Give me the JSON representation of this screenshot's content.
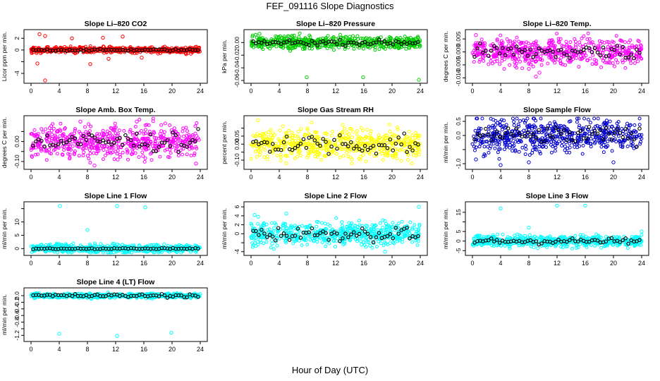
{
  "title": "FEF_091116  Slope Diagnostics",
  "xlabel": "Hour of Day (UTC)",
  "chart_data": [
    {
      "type": "scatter",
      "title": "Slope Li–820 CO2",
      "ylabel": "Licor ppm per min.",
      "color": "#ff0000",
      "xlim": [
        0,
        24
      ],
      "ylim": [
        -5.2,
        3.0
      ],
      "xticks": [
        0,
        4,
        8,
        12,
        16,
        20,
        24
      ],
      "yticks": [
        -4,
        -2,
        0,
        2
      ],
      "ytick_labels": [
        "-4",
        "",
        "0",
        "2"
      ],
      "spread": 0.25,
      "mean_spread": 0.08,
      "outliers": [
        [
          1.2,
          2.7
        ],
        [
          2.0,
          2.4
        ],
        [
          5.8,
          2.0
        ],
        [
          10.2,
          2.1
        ],
        [
          13.0,
          2.3
        ],
        [
          2.0,
          -5.2
        ],
        [
          0.9,
          -2.3
        ],
        [
          8.4,
          -2.4
        ],
        [
          11.0,
          -1.5
        ],
        [
          15.7,
          -1.3
        ],
        [
          22.0,
          -0.7
        ]
      ]
    },
    {
      "type": "scatter",
      "title": "Slope Li–820 Pressure",
      "ylabel": "kPa per min.",
      "color": "#00cc00",
      "xlim": [
        0,
        24
      ],
      "ylim": [
        -0.06,
        0.016
      ],
      "xticks": [
        0,
        4,
        8,
        12,
        16,
        20,
        24
      ],
      "yticks": [
        -0.06,
        -0.04,
        -0.02,
        0.0
      ],
      "ytick_labels": [
        "-0.06",
        "-0.04",
        "-0.02",
        "0.00"
      ],
      "spread": 0.005,
      "mean_spread": 0.002,
      "outliers": [
        [
          7.9,
          -0.055
        ],
        [
          15.9,
          -0.055
        ],
        [
          23.8,
          -0.059
        ],
        [
          1.2,
          0.014
        ],
        [
          3.5,
          0.01
        ],
        [
          14.0,
          0.009
        ]
      ]
    },
    {
      "type": "scatter",
      "title": "Slope Li–820 Temp.",
      "ylabel": "degrees C per min.",
      "color": "#ff00ff",
      "xlim": [
        0,
        24
      ],
      "ylim": [
        -0.011,
        0.0075
      ],
      "xticks": [
        0,
        4,
        8,
        12,
        16,
        20,
        24
      ],
      "yticks": [
        -0.01,
        -0.005,
        0.0,
        0.005
      ],
      "ytick_labels": [
        "-0.010",
        "-0.005",
        "0.000",
        "0.005"
      ],
      "spread": 0.0025,
      "mean_spread": 0.0015,
      "outliers": [
        [
          8.0,
          -0.0065
        ],
        [
          9.0,
          -0.0095
        ],
        [
          9.5,
          -0.008
        ],
        [
          0.5,
          0.0065
        ],
        [
          12.5,
          0.005
        ]
      ]
    },
    {
      "type": "scatter",
      "title": "Slope Amb. Box Temp.",
      "ylabel": "degrees C per min.",
      "color": "#ff00ff",
      "xlim": [
        0,
        24
      ],
      "ylim": [
        -0.125,
        0.115
      ],
      "xticks": [
        0,
        4,
        8,
        12,
        16,
        20,
        24
      ],
      "yticks": [
        -0.1,
        -0.05,
        0.0,
        0.05
      ],
      "ytick_labels": [
        "-0.10",
        "",
        "0.00",
        ""
      ],
      "spread": 0.04,
      "mean_spread": 0.025,
      "outliers": [
        [
          9.0,
          -0.12
        ],
        [
          23.4,
          -0.11
        ],
        [
          12.3,
          -0.09
        ],
        [
          7.0,
          0.1
        ],
        [
          15.0,
          0.1
        ]
      ]
    },
    {
      "type": "scatter",
      "title": "Slope Gas Stream RH",
      "ylabel": "percent per min.",
      "color": "#ffff00",
      "xlim": [
        0,
        24
      ],
      "ylim": [
        -0.14,
        0.16
      ],
      "xticks": [
        0,
        4,
        8,
        12,
        16,
        20,
        24
      ],
      "yticks": [
        -0.1,
        -0.05,
        0.0,
        0.05,
        0.1
      ],
      "ytick_labels": [
        "-0.10",
        "",
        "0.00",
        "0.05",
        ""
      ],
      "spread": 0.045,
      "mean_spread": 0.035,
      "outliers": [
        [
          1.0,
          0.15
        ],
        [
          5.0,
          -0.12
        ],
        [
          22.8,
          -0.12
        ],
        [
          13.0,
          0.12
        ]
      ]
    },
    {
      "type": "scatter",
      "title": "Slope Sample Flow",
      "ylabel": "ml/min per min.",
      "color": "#0000cc",
      "xlim": [
        0,
        24
      ],
      "ylim": [
        -1.1,
        0.6
      ],
      "xticks": [
        0,
        4,
        8,
        12,
        16,
        20,
        24
      ],
      "yticks": [
        -1.0,
        -0.5,
        0.0,
        0.5
      ],
      "ytick_labels": [
        "-1.0",
        "",
        "0.0",
        "0.5"
      ],
      "spread": 0.3,
      "mean_spread": 0.15,
      "outliers": [
        [
          4.0,
          -1.05
        ],
        [
          20.0,
          -0.95
        ],
        [
          8.0,
          -0.95
        ],
        [
          0.5,
          -0.85
        ]
      ]
    },
    {
      "type": "scatter",
      "title": "Slope Line 1 Flow",
      "ylabel": "ml/min per min.",
      "color": "#00ffff",
      "xlim": [
        0,
        24
      ],
      "ylim": [
        -1.5,
        16.5
      ],
      "xticks": [
        0,
        4,
        8,
        12,
        16,
        20,
        24
      ],
      "yticks": [
        0,
        5,
        10,
        15
      ],
      "ytick_labels": [
        "0",
        "5",
        "10",
        ""
      ],
      "spread": 0.8,
      "mean_spread": 0.1,
      "outliers": [
        [
          4.1,
          16.0
        ],
        [
          12.2,
          16.0
        ],
        [
          16.2,
          15.5
        ],
        [
          8.0,
          7.0
        ]
      ]
    },
    {
      "type": "scatter",
      "title": "Slope Line 2 Flow",
      "ylabel": "ml/min per min.",
      "color": "#00ffff",
      "xlim": [
        0,
        24
      ],
      "ylim": [
        -4.2,
        6.5
      ],
      "xticks": [
        0,
        4,
        8,
        12,
        16,
        20,
        24
      ],
      "yticks": [
        -4,
        -2,
        0,
        2,
        4,
        6
      ],
      "ytick_labels": [
        "-4",
        "",
        "0",
        "2",
        "4",
        "6"
      ],
      "spread": 1.3,
      "mean_spread": 0.8,
      "outliers": [
        [
          0.5,
          4.2
        ],
        [
          1.0,
          3.8
        ],
        [
          5.0,
          4.5
        ],
        [
          23.8,
          6.0
        ],
        [
          19.0,
          -4.0
        ],
        [
          3.0,
          -2.2
        ]
      ]
    },
    {
      "type": "scatter",
      "title": "Slope Line 3 Flow",
      "ylabel": "ml/min per min.",
      "color": "#00ffff",
      "xlim": [
        0,
        24
      ],
      "ylim": [
        -6.0,
        19.0
      ],
      "xticks": [
        0,
        4,
        8,
        12,
        16,
        20,
        24
      ],
      "yticks": [
        -5,
        0,
        5,
        10,
        15
      ],
      "ytick_labels": [
        "-5",
        "0",
        "5",
        "",
        "15"
      ],
      "spread": 1.5,
      "mean_spread": 0.8,
      "outliers": [
        [
          4.0,
          17.0
        ],
        [
          12.0,
          18.5
        ],
        [
          16.0,
          18.5
        ],
        [
          8.0,
          7.0
        ],
        [
          24.0,
          5.0
        ]
      ]
    },
    {
      "type": "scatter",
      "title": "Slope Line 4 (LT) Flow",
      "ylabel": "ml/min per min.",
      "color": "#00ffff",
      "xlim": [
        0,
        24
      ],
      "ylim": [
        -1.3,
        0.15
      ],
      "xticks": [
        0,
        4,
        8,
        12,
        16,
        20,
        24
      ],
      "yticks": [
        -1.2,
        -1.0,
        -0.8,
        -0.6,
        -0.4,
        -0.2,
        0.0
      ],
      "ytick_labels": [
        "-1.2",
        "",
        "-0.8",
        "-0.6",
        "-0.4",
        "-0.2",
        "0.0"
      ],
      "spread": 0.035,
      "mean_spread": 0.025,
      "outliers": [
        [
          4.0,
          -1.15
        ],
        [
          12.2,
          -1.22
        ],
        [
          19.9,
          -1.12
        ]
      ]
    }
  ]
}
